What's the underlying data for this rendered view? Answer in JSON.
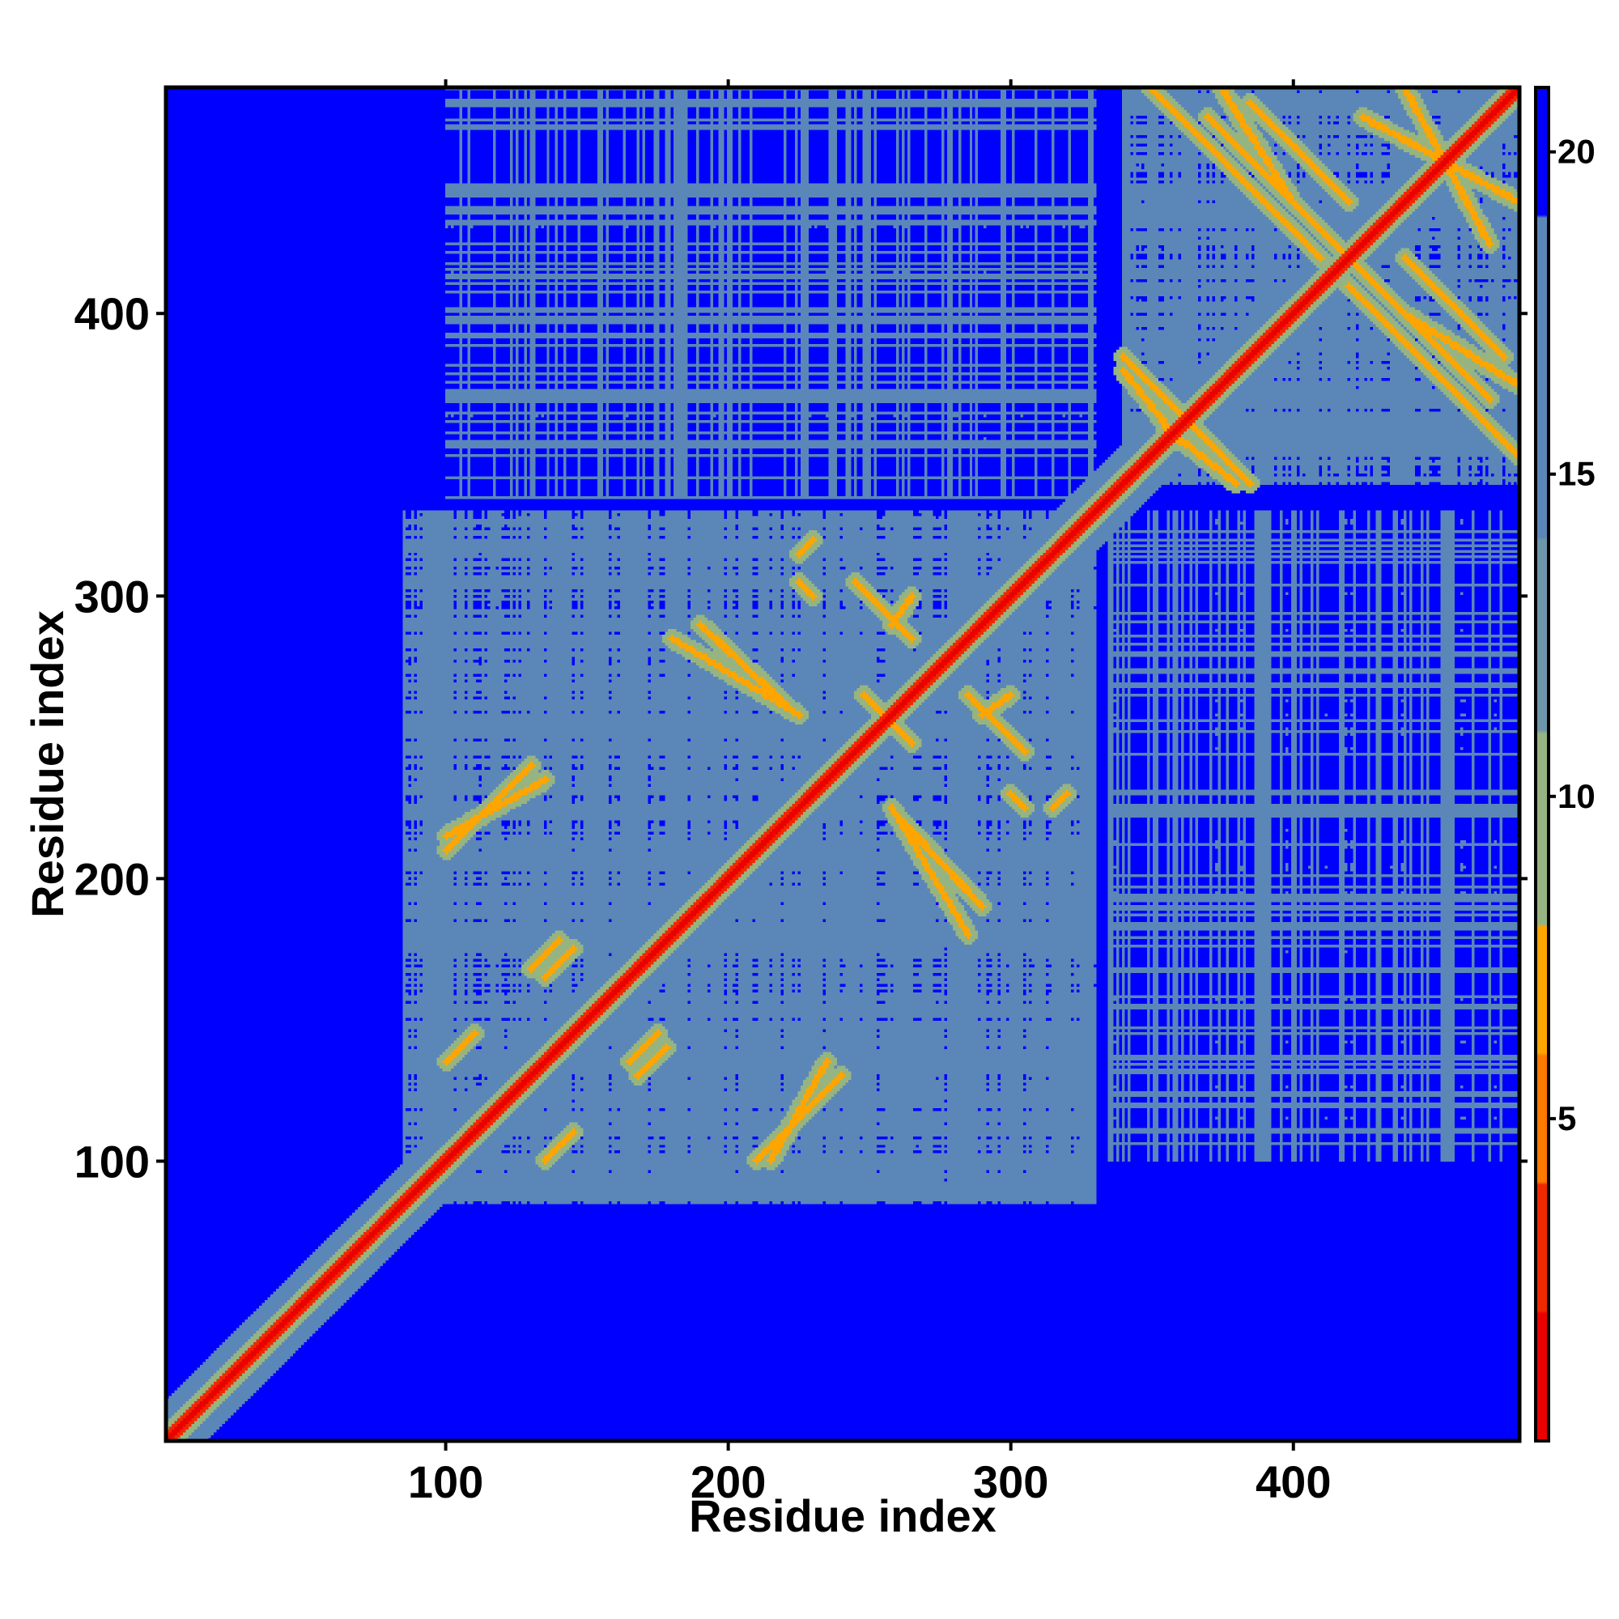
{
  "chart_data": {
    "type": "heatmap",
    "title": "",
    "xlabel": "Residue index",
    "ylabel": "Residue index",
    "n_residues": 480,
    "xlim": [
      1,
      480
    ],
    "ylim": [
      1,
      480
    ],
    "xticks": [
      100,
      200,
      300,
      400
    ],
    "yticks": [
      100,
      200,
      300,
      400
    ],
    "x_tick_labels": [
      "100",
      "200",
      "300",
      "400"
    ],
    "y_tick_labels": [
      "100",
      "200",
      "300",
      "400"
    ],
    "colorbar": {
      "ticks": [
        5,
        10,
        15,
        20
      ],
      "tick_labels": [
        "5",
        "10",
        "15",
        "20"
      ],
      "range": [
        0,
        21
      ],
      "colors": [
        "#ff0000",
        "#ff8c00",
        "#8fae8f",
        "#5b86b8",
        "#0000ff"
      ]
    },
    "value_description": "pairwise residue distance map; near-diagonal cells low (red), contact cells ~5-10 (orange/yellow-green), medium distances ~15-20 (steel blue), far pairs above cutoff (blue)",
    "domains": [
      {
        "name": "",
        "start": 85,
        "end": 330
      },
      {
        "name": "",
        "start": 340,
        "end": 480
      }
    ],
    "interdomain_block": {
      "x_range": [
        335,
        480
      ],
      "y_range": [
        100,
        330
      ]
    },
    "contact_lines": [
      {
        "x1": 100,
        "y1": 215,
        "x2": 135,
        "y2": 235
      },
      {
        "x1": 100,
        "y1": 135,
        "x2": 110,
        "y2": 145
      },
      {
        "x1": 130,
        "y1": 168,
        "x2": 140,
        "y2": 178
      },
      {
        "x1": 135,
        "y1": 100,
        "x2": 145,
        "y2": 110
      },
      {
        "x1": 165,
        "y1": 135,
        "x2": 175,
        "y2": 145
      },
      {
        "x1": 180,
        "y1": 285,
        "x2": 225,
        "y2": 258
      },
      {
        "x1": 210,
        "y1": 100,
        "x2": 240,
        "y2": 130
      },
      {
        "x1": 225,
        "y1": 315,
        "x2": 230,
        "y2": 320
      },
      {
        "x1": 245,
        "y1": 305,
        "x2": 265,
        "y2": 285
      },
      {
        "x1": 248,
        "y1": 265,
        "x2": 265,
        "y2": 248
      },
      {
        "x1": 260,
        "y1": 222,
        "x2": 290,
        "y2": 190
      },
      {
        "x1": 290,
        "y1": 258,
        "x2": 300,
        "y2": 265
      },
      {
        "x1": 300,
        "y1": 230,
        "x2": 305,
        "y2": 225
      },
      {
        "x1": 340,
        "y1": 385,
        "x2": 365,
        "y2": 360
      },
      {
        "x1": 355,
        "y1": 360,
        "x2": 380,
        "y2": 340
      },
      {
        "x1": 370,
        "y1": 470,
        "x2": 400,
        "y2": 440
      },
      {
        "x1": 385,
        "y1": 475,
        "x2": 420,
        "y2": 440
      },
      {
        "x1": 400,
        "y1": 440,
        "x2": 430,
        "y2": 410
      },
      {
        "x1": 420,
        "y1": 410,
        "x2": 480,
        "y2": 350
      },
      {
        "x1": 440,
        "y1": 400,
        "x2": 480,
        "y2": 375
      },
      {
        "x1": 425,
        "y1": 470,
        "x2": 480,
        "y2": 440
      }
    ]
  }
}
